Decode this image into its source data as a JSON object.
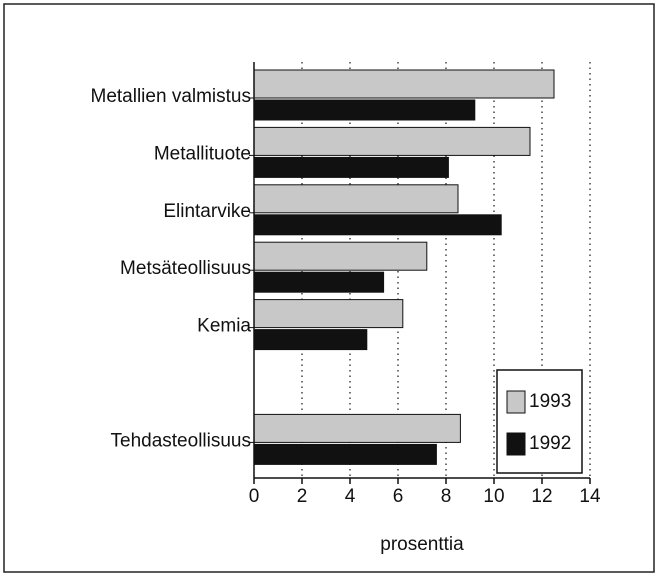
{
  "chart_data": {
    "type": "barh",
    "categories": [
      "Metallien valmistus",
      "Metallituote",
      "Elintarvike",
      "Metsäteollisuus",
      "Kemia",
      null,
      "Tehdasteollisuus"
    ],
    "series": [
      {
        "name": "1993",
        "color": "#c8c8c8",
        "values": [
          12.5,
          11.5,
          8.5,
          7.2,
          6.2,
          null,
          8.6
        ]
      },
      {
        "name": "1992",
        "color": "#111111",
        "values": [
          9.2,
          8.1,
          10.3,
          5.4,
          4.7,
          null,
          7.6
        ]
      }
    ],
    "xlabel": "prosenttia",
    "xlim": [
      0,
      14
    ],
    "xticks": [
      0,
      2,
      4,
      6,
      8,
      10,
      12,
      14
    ],
    "grid": true,
    "legend": "lower right"
  }
}
